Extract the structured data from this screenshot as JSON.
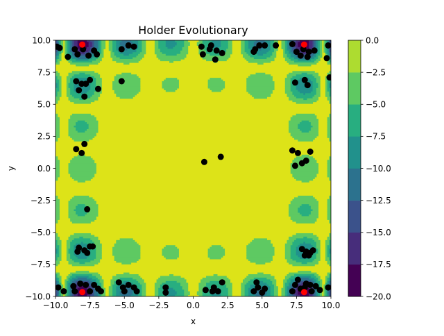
{
  "chart_data": {
    "type": "contour",
    "title": "Holder Evolutionary",
    "xlabel": "x",
    "ylabel": "y",
    "xlim": [
      -10,
      10
    ],
    "ylim": [
      -10,
      10
    ],
    "x_ticks": [
      -10,
      -7.5,
      -5,
      -2.5,
      0,
      2.5,
      5,
      7.5,
      10
    ],
    "y_ticks": [
      -10,
      -7.5,
      -5,
      -2.5,
      0,
      2.5,
      5,
      7.5,
      10
    ],
    "x_tick_labels": [
      "−10.0",
      "−7.5",
      "−5.0",
      "−2.5",
      "0.0",
      "2.5",
      "5.0",
      "7.5",
      "10.0"
    ],
    "y_tick_labels": [
      "−10.0",
      "−7.5",
      "−5.0",
      "−2.5",
      "0.0",
      "2.5",
      "5.0",
      "7.5",
      "10.0"
    ],
    "colorbar": {
      "levels": [
        -20,
        -17.5,
        -15,
        -12.5,
        -10,
        -7.5,
        -5,
        -2.5,
        0
      ],
      "tick_labels": [
        "−20.0",
        "−17.5",
        "−15.0",
        "−12.5",
        "−10.0",
        "−7.5",
        "−5.0",
        "−2.5",
        "0.0"
      ],
      "colors": [
        "#440154",
        "#472d7b",
        "#3b528b",
        "#2c728e",
        "#21918c",
        "#28ae80",
        "#5ec962",
        "#addc30",
        "#dde318"
      ]
    },
    "background_color": "#dde318",
    "population_color": "#000000",
    "optima_color": "#ff0000",
    "population": [
      [
        -9.7,
        9.4
      ],
      [
        -8.6,
        9.3
      ],
      [
        -8.0,
        9.3
      ],
      [
        -7.2,
        9.2
      ],
      [
        -8.4,
        8.9
      ],
      [
        -7.6,
        8.8
      ],
      [
        -9.1,
        8.7
      ],
      [
        -7.0,
        8.9
      ],
      [
        -5.2,
        9.3
      ],
      [
        -4.7,
        9.6
      ],
      [
        -4.3,
        9.5
      ],
      [
        -9.9,
        9.5
      ],
      [
        0.6,
        9.5
      ],
      [
        1.3,
        9.6
      ],
      [
        1.7,
        9.2
      ],
      [
        1.2,
        9.3
      ],
      [
        0.7,
        8.9
      ],
      [
        2.1,
        9.0
      ],
      [
        1.6,
        8.5
      ],
      [
        4.5,
        9.3
      ],
      [
        4.8,
        9.6
      ],
      [
        5.2,
        9.6
      ],
      [
        6.0,
        9.6
      ],
      [
        4.4,
        9.1
      ],
      [
        7.5,
        9.1
      ],
      [
        8.0,
        9.3
      ],
      [
        8.4,
        9.1
      ],
      [
        8.8,
        9.2
      ],
      [
        7.8,
        8.8
      ],
      [
        8.3,
        8.7
      ],
      [
        9.8,
        9.6
      ],
      [
        7.2,
        9.7
      ],
      [
        -8.5,
        6.8
      ],
      [
        -8.1,
        6.6
      ],
      [
        -7.5,
        6.9
      ],
      [
        -8.3,
        6.1
      ],
      [
        -7.8,
        6.6
      ],
      [
        -6.9,
        6.2
      ],
      [
        -7.9,
        5.6
      ],
      [
        -5.2,
        6.8
      ],
      [
        7.4,
        6.7
      ],
      [
        8.1,
        6.9
      ],
      [
        8.3,
        6.5
      ],
      [
        9.9,
        7.1
      ],
      [
        9.7,
        8.6
      ],
      [
        -8.5,
        1.5
      ],
      [
        -8.1,
        1.2
      ],
      [
        -7.9,
        1.9
      ],
      [
        0.8,
        0.5
      ],
      [
        2.0,
        0.9
      ],
      [
        7.2,
        1.4
      ],
      [
        7.6,
        1.2
      ],
      [
        8.5,
        1.3
      ],
      [
        7.4,
        0.2
      ],
      [
        7.9,
        0.4
      ],
      [
        8.2,
        0.6
      ],
      [
        -7.7,
        -3.2
      ],
      [
        -8.3,
        -6.2
      ],
      [
        -8.4,
        -6.5
      ],
      [
        -7.9,
        -6.4
      ],
      [
        -7.5,
        -6.1
      ],
      [
        -7.3,
        -6.1
      ],
      [
        -7.7,
        -6.6
      ],
      [
        7.9,
        -6.3
      ],
      [
        8.2,
        -6.5
      ],
      [
        8.5,
        -6.6
      ],
      [
        8.7,
        -6.4
      ],
      [
        8.1,
        -6.8
      ],
      [
        8.4,
        -6.8
      ],
      [
        -9.8,
        -9.3
      ],
      [
        -9.4,
        -9.6
      ],
      [
        -8.7,
        -9.2
      ],
      [
        -8.2,
        -9.0
      ],
      [
        -7.8,
        -9.1
      ],
      [
        -7.2,
        -9.1
      ],
      [
        -6.9,
        -9.4
      ],
      [
        -6.7,
        -9.6
      ],
      [
        -8.6,
        -9.6
      ],
      [
        -7.5,
        -9.6
      ],
      [
        -5.4,
        -8.9
      ],
      [
        -5.1,
        -9.3
      ],
      [
        -4.7,
        -9.1
      ],
      [
        -4.3,
        -9.3
      ],
      [
        -4.1,
        -9.6
      ],
      [
        -5.0,
        -9.6
      ],
      [
        -2.0,
        -9.3
      ],
      [
        -2.0,
        -9.7
      ],
      [
        0.9,
        -9.5
      ],
      [
        1.5,
        -9.3
      ],
      [
        1.8,
        -9.6
      ],
      [
        2.1,
        -8.9
      ],
      [
        1.4,
        -9.6
      ],
      [
        4.6,
        -8.9
      ],
      [
        4.7,
        -9.3
      ],
      [
        4.4,
        -9.6
      ],
      [
        5.2,
        -9.4
      ],
      [
        5.0,
        -9.7
      ],
      [
        7.4,
        -9.1
      ],
      [
        7.8,
        -9.4
      ],
      [
        8.1,
        -9.3
      ],
      [
        8.5,
        -9.1
      ],
      [
        8.9,
        -9.2
      ],
      [
        9.2,
        -9.5
      ],
      [
        7.6,
        -8.7
      ],
      [
        8.2,
        -9.0
      ],
      [
        9.8,
        -9.3
      ],
      [
        7.2,
        -9.6
      ],
      [
        8.6,
        -9.6
      ]
    ],
    "optima": [
      [
        -8.055,
        9.665
      ],
      [
        8.055,
        9.665
      ],
      [
        -8.055,
        -9.665
      ],
      [
        8.055,
        -9.665
      ]
    ]
  }
}
